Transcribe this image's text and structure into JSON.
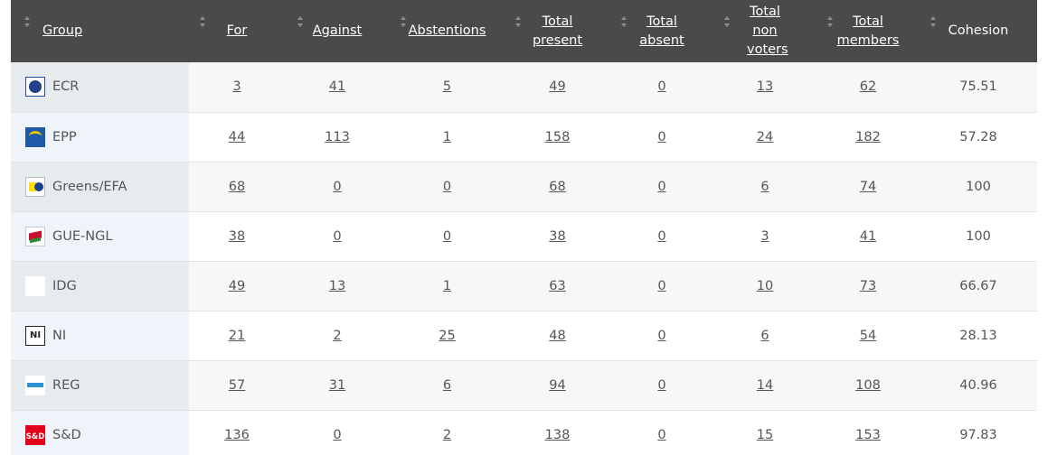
{
  "columns": [
    {
      "key": "group",
      "label": "Group",
      "linked": false
    },
    {
      "key": "for",
      "label": "For",
      "linked": true
    },
    {
      "key": "against",
      "label": "Against",
      "linked": true
    },
    {
      "key": "abstentions",
      "label": "Abstentions",
      "linked": true
    },
    {
      "key": "total_present",
      "label": "Total present",
      "linked": true
    },
    {
      "key": "total_absent",
      "label": "Total absent",
      "linked": true
    },
    {
      "key": "total_non_voters",
      "label": "Total non voters",
      "linked": true
    },
    {
      "key": "total_members",
      "label": "Total members",
      "linked": true
    },
    {
      "key": "cohesion",
      "label": "Cohesion",
      "linked": false
    }
  ],
  "rows": [
    {
      "logo": "ecr-logo-icon",
      "logo_text": "",
      "group": "ECR",
      "for": "3",
      "against": "41",
      "abstentions": "5",
      "total_present": "49",
      "total_absent": "0",
      "total_non_voters": "13",
      "total_members": "62",
      "cohesion": "75.51"
    },
    {
      "logo": "epp-logo-icon",
      "logo_text": "",
      "group": "EPP",
      "for": "44",
      "against": "113",
      "abstentions": "1",
      "total_present": "158",
      "total_absent": "0",
      "total_non_voters": "24",
      "total_members": "182",
      "cohesion": "57.28"
    },
    {
      "logo": "greens-efa-logo-icon",
      "logo_text": "",
      "group": "Greens/EFA",
      "for": "68",
      "against": "0",
      "abstentions": "0",
      "total_present": "68",
      "total_absent": "0",
      "total_non_voters": "6",
      "total_members": "74",
      "cohesion": "100"
    },
    {
      "logo": "gue-ngl-logo-icon",
      "logo_text": "",
      "group": "GUE-NGL",
      "for": "38",
      "against": "0",
      "abstentions": "0",
      "total_present": "38",
      "total_absent": "0",
      "total_non_voters": "3",
      "total_members": "41",
      "cohesion": "100"
    },
    {
      "logo": "idg-logo-icon",
      "logo_text": "",
      "group": "IDG",
      "for": "49",
      "against": "13",
      "abstentions": "1",
      "total_present": "63",
      "total_absent": "0",
      "total_non_voters": "10",
      "total_members": "73",
      "cohesion": "66.67"
    },
    {
      "logo": "ni-logo-icon",
      "logo_text": "NI",
      "group": "NI",
      "for": "21",
      "against": "2",
      "abstentions": "25",
      "total_present": "48",
      "total_absent": "0",
      "total_non_voters": "6",
      "total_members": "54",
      "cohesion": "28.13"
    },
    {
      "logo": "reg-logo-icon",
      "logo_text": "",
      "group": "REG",
      "for": "57",
      "against": "31",
      "abstentions": "6",
      "total_present": "94",
      "total_absent": "0",
      "total_non_voters": "14",
      "total_members": "108",
      "cohesion": "40.96"
    },
    {
      "logo": "sd-logo-icon",
      "logo_text": "S&D",
      "group": "S&D",
      "for": "136",
      "against": "0",
      "abstentions": "2",
      "total_present": "138",
      "total_absent": "0",
      "total_non_voters": "15",
      "total_members": "153",
      "cohesion": "97.83"
    }
  ],
  "colors": {
    "header_bg": "#4a4a4a",
    "group_cell_bg": "#e6ebee",
    "group_cell_alt_bg": "#eef4f9",
    "text": "#555555"
  }
}
